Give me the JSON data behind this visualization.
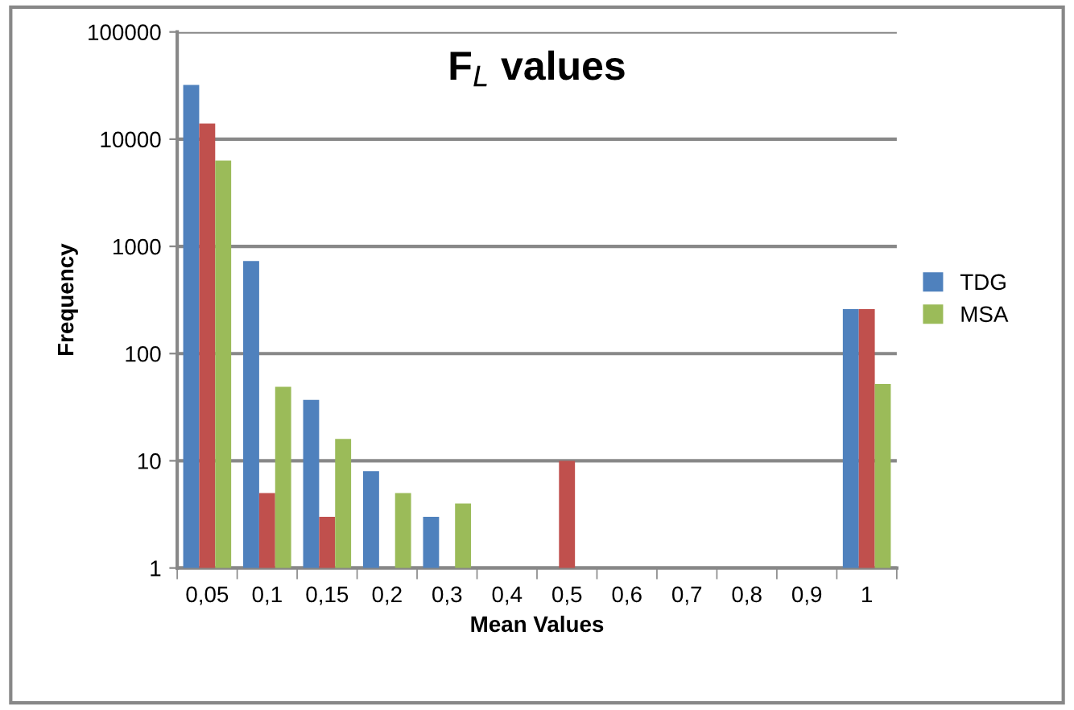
{
  "chart_data": {
    "type": "bar",
    "title": "F$_{L}$ values",
    "xlabel": "Mean Values",
    "ylabel": "Frequency",
    "categories": [
      "0,05",
      "0,1",
      "0,15",
      "0,2",
      "0,3",
      "0,4",
      "0,5",
      "0,6",
      "0,7",
      "0,8",
      "0,9",
      "1"
    ],
    "series": [
      {
        "name": "TDG",
        "color": "#4f81bd",
        "values": [
          32000,
          730,
          37,
          8,
          3,
          null,
          null,
          null,
          null,
          null,
          null,
          260
        ]
      },
      {
        "color": "#c0504d",
        "values": [
          14000,
          5,
          3,
          null,
          null,
          null,
          10,
          null,
          null,
          null,
          null,
          260
        ]
      },
      {
        "name": "MSA",
        "color": "#9bbb59",
        "values": [
          6300,
          49,
          16,
          5,
          4,
          null,
          null,
          null,
          null,
          null,
          null,
          52
        ]
      }
    ],
    "log": true,
    "ylim": [
      1,
      100000
    ],
    "yticks": [
      1,
      10,
      100,
      1000,
      10000,
      100000
    ],
    "grid": "y",
    "legend": "right"
  }
}
